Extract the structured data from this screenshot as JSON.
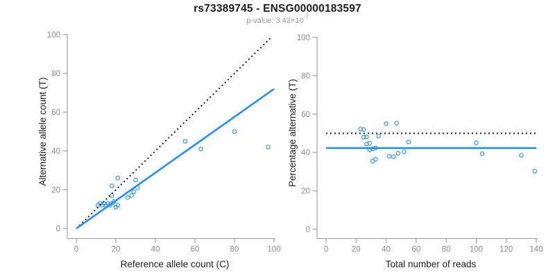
{
  "header": {
    "title": "rs73389745 - ENSG00000183597",
    "subtitle_text": "p-value: 3.42×10",
    "subtitle_exponent": "-7"
  },
  "colors": {
    "point_blue": "#2E93F0",
    "line_blue": "#1E90FF",
    "line_black": "#000000",
    "axis_gray": "#999999",
    "tick_label_gray": "#8a8a8a",
    "text_black": "#1c1c1c",
    "subtitle_gray": "#9a9a9a",
    "background": "#ffffff"
  },
  "chart_data": [
    {
      "type": "scatter",
      "panel": "allele-counts",
      "xlabel": "Reference allele count (C)",
      "ylabel": "Alternative allele count (T)",
      "xlim": [
        0,
        100
      ],
      "ylim": [
        0,
        100
      ],
      "xticks": [
        0,
        20,
        40,
        60,
        80,
        100
      ],
      "yticks": [
        0,
        20,
        40,
        60,
        80,
        100
      ],
      "grid": false,
      "legend": "none",
      "point_style": "open-circle",
      "points": [
        [
          11,
          12
        ],
        [
          12,
          13
        ],
        [
          13,
          12
        ],
        [
          14,
          13
        ],
        [
          15,
          12
        ],
        [
          16,
          13
        ],
        [
          17,
          12
        ],
        [
          18,
          13
        ],
        [
          19,
          14
        ],
        [
          20,
          11
        ],
        [
          21,
          12
        ],
        [
          18,
          17
        ],
        [
          18,
          22
        ],
        [
          21,
          26
        ],
        [
          26,
          16
        ],
        [
          28,
          17
        ],
        [
          29,
          19
        ],
        [
          31,
          21
        ],
        [
          30,
          25
        ],
        [
          55,
          45
        ],
        [
          63,
          41
        ],
        [
          80,
          50
        ],
        [
          97,
          42
        ]
      ],
      "lines": [
        {
          "name": "identity-line",
          "style": "dotted",
          "color": "#000000",
          "x1": 0,
          "y1": 0,
          "x2": 98,
          "y2": 98
        },
        {
          "name": "fit-line",
          "style": "solid",
          "color": "#1E90FF",
          "x1": 0,
          "y1": 0,
          "x2": 100,
          "y2": 72
        }
      ]
    },
    {
      "type": "scatter",
      "panel": "percentage-vs-coverage",
      "xlabel": "Total number of reads",
      "ylabel": "Percentage alternative (T)",
      "xlim": [
        0,
        140
      ],
      "ylim": [
        0,
        100
      ],
      "xticks": [
        0,
        20,
        40,
        60,
        80,
        100,
        120,
        140
      ],
      "yticks": [
        0,
        20,
        40,
        60,
        80,
        100
      ],
      "grid": false,
      "legend": "none",
      "point_style": "open-circle",
      "points": [
        [
          23,
          52.2
        ],
        [
          25,
          52.0
        ],
        [
          25,
          48.0
        ],
        [
          27,
          48.1
        ],
        [
          27,
          44.4
        ],
        [
          29,
          44.8
        ],
        [
          29,
          41.4
        ],
        [
          31,
          41.9
        ],
        [
          33,
          42.4
        ],
        [
          31,
          35.5
        ],
        [
          33,
          36.4
        ],
        [
          35,
          48.6
        ],
        [
          40,
          55.0
        ],
        [
          47,
          55.3
        ],
        [
          42,
          38.1
        ],
        [
          45,
          37.8
        ],
        [
          48,
          39.6
        ],
        [
          52,
          40.4
        ],
        [
          55,
          45.5
        ],
        [
          100,
          45.0
        ],
        [
          104,
          39.4
        ],
        [
          130,
          38.5
        ],
        [
          139,
          30.2
        ]
      ],
      "lines": [
        {
          "name": "expected-50-percent-line",
          "style": "dotted",
          "color": "#000000",
          "x1": 0,
          "y1": 50,
          "x2": 140,
          "y2": 50
        },
        {
          "name": "observed-mean-line",
          "style": "solid",
          "color": "#1E90FF",
          "x1": 0,
          "y1": 42.3,
          "x2": 140,
          "y2": 42.3
        }
      ]
    }
  ]
}
